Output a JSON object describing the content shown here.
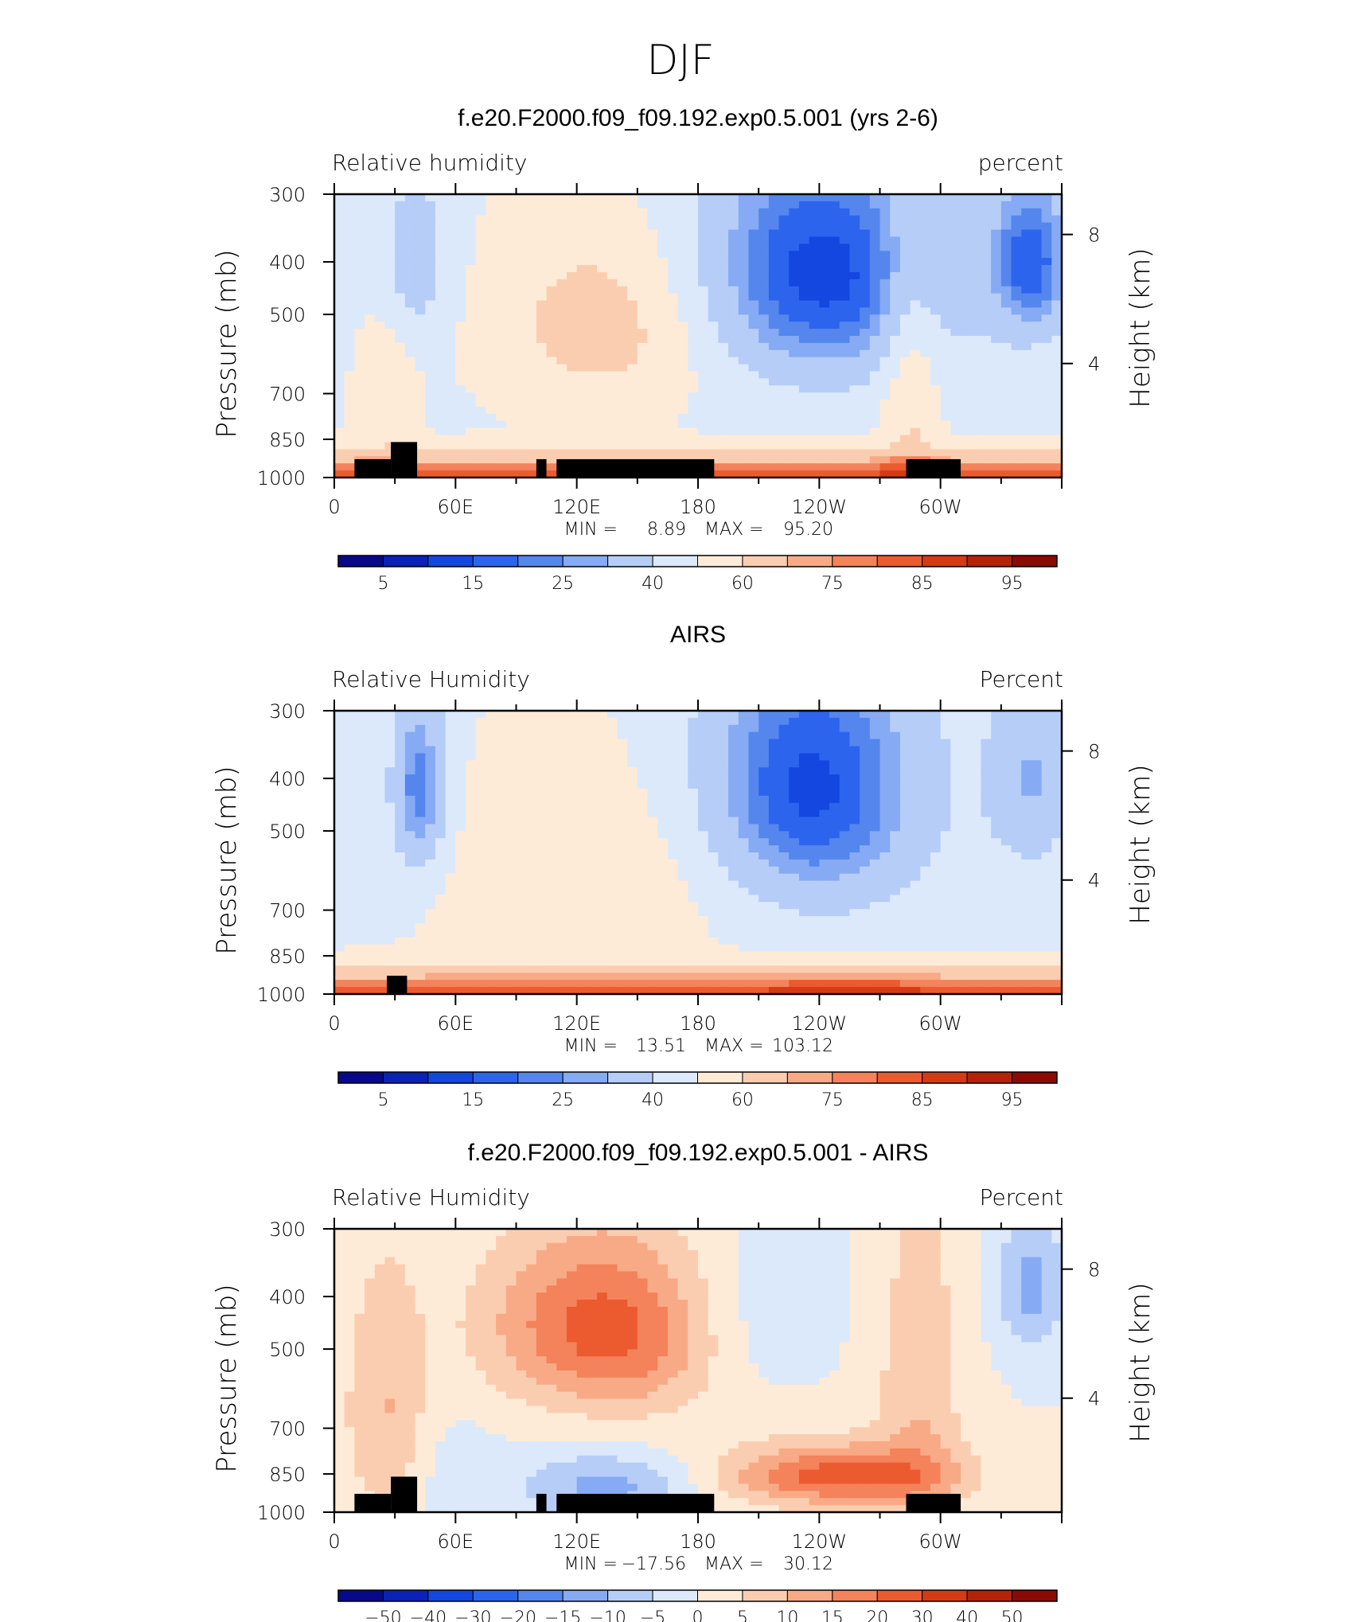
{
  "figure_title": "DJF",
  "chart_data": [
    {
      "type": "heatmap",
      "title": "f.e20.F2000.f09_f09.192.exp0.5.001 (yrs 2-6)",
      "left_label": "Relative humidity",
      "right_label": "percent",
      "ylabel": "Pressure (mb)",
      "y2label": "Height (km)",
      "x_ticks": [
        "0",
        "60E",
        "120E",
        "180",
        "120W",
        "60W"
      ],
      "y_ticks": [
        "300",
        "400",
        "500",
        "700",
        "850",
        "1000"
      ],
      "y2_ticks": [
        "8",
        "4"
      ],
      "xlim": [
        0,
        360
      ],
      "ylim": [
        1000,
        300
      ],
      "y_scale": "log",
      "stats": {
        "min_label": "MIN =",
        "min": "8.89",
        "max_label": "MAX =",
        "max": "95.20"
      },
      "colorbar": {
        "labels": [
          "5",
          "15",
          "25",
          "40",
          "60",
          "75",
          "85",
          "95"
        ],
        "colors": [
          "#08088a",
          "#0a22b8",
          "#1446e0",
          "#2d64ee",
          "#5486ee",
          "#86aaf3",
          "#b6cdf8",
          "#dce9fb",
          "#fdebd8",
          "#fbcdb0",
          "#f8aa86",
          "#f4825b",
          "#ec5a30",
          "#d63a14",
          "#b42308",
          "#8c0a04"
        ]
      }
    },
    {
      "type": "heatmap",
      "title": "AIRS",
      "left_label": "Relative Humidity",
      "right_label": "Percent",
      "ylabel": "Pressure (mb)",
      "y2label": "Height (km)",
      "x_ticks": [
        "0",
        "60E",
        "120E",
        "180",
        "120W",
        "60W"
      ],
      "y_ticks": [
        "300",
        "400",
        "500",
        "700",
        "850",
        "1000"
      ],
      "y2_ticks": [
        "8",
        "4"
      ],
      "xlim": [
        0,
        360
      ],
      "ylim": [
        1000,
        300
      ],
      "y_scale": "log",
      "stats": {
        "min_label": "MIN =",
        "min": "13.51",
        "max_label": "MAX =",
        "max": "103.12"
      },
      "colorbar": {
        "labels": [
          "5",
          "15",
          "25",
          "40",
          "60",
          "75",
          "85",
          "95"
        ],
        "colors": [
          "#08088a",
          "#0a22b8",
          "#1446e0",
          "#2d64ee",
          "#5486ee",
          "#86aaf3",
          "#b6cdf8",
          "#dce9fb",
          "#fdebd8",
          "#fbcdb0",
          "#f8aa86",
          "#f4825b",
          "#ec5a30",
          "#d63a14",
          "#b42308",
          "#8c0a04"
        ]
      }
    },
    {
      "type": "heatmap",
      "title": "f.e20.F2000.f09_f09.192.exp0.5.001 - AIRS",
      "left_label": "Relative Humidity",
      "right_label": "Percent",
      "ylabel": "Pressure (mb)",
      "y2label": "Height (km)",
      "x_ticks": [
        "0",
        "60E",
        "120E",
        "180",
        "120W",
        "60W"
      ],
      "y_ticks": [
        "300",
        "400",
        "500",
        "700",
        "850",
        "1000"
      ],
      "y2_ticks": [
        "8",
        "4"
      ],
      "xlim": [
        0,
        360
      ],
      "ylim": [
        1000,
        300
      ],
      "y_scale": "log",
      "stats": {
        "min_label": "MIN =",
        "min": "−17.56",
        "max_label": "MAX =",
        "max": "30.12"
      },
      "colorbar": {
        "labels": [
          "−50",
          "−40",
          "−30",
          "−20",
          "−15",
          "−10",
          "−5",
          "0",
          "5",
          "10",
          "15",
          "20",
          "30",
          "40",
          "50"
        ],
        "colors": [
          "#08088a",
          "#0a22b8",
          "#1446e0",
          "#2d64ee",
          "#5486ee",
          "#86aaf3",
          "#b6cdf8",
          "#dce9fb",
          "#fdebd8",
          "#fbcdb0",
          "#f8aa86",
          "#f4825b",
          "#ec5a30",
          "#d63a14",
          "#b42308",
          "#8c0a04"
        ]
      }
    }
  ]
}
